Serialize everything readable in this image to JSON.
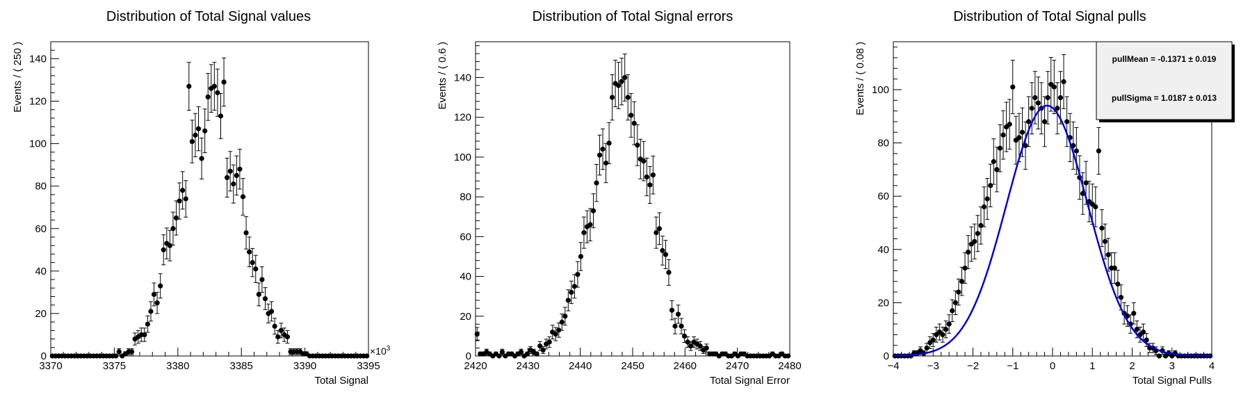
{
  "chart_data": [
    {
      "type": "scatter",
      "title": "Distribution of Total Signal values",
      "xlabel": "Total Signal",
      "ylabel": "Events / ( 250 )",
      "xlim": [
        3370,
        3395
      ],
      "ylim": [
        0,
        148
      ],
      "x_ticks": [
        "3370",
        "3375",
        "3380",
        "3385",
        "3390",
        "3395"
      ],
      "x_tick_values": [
        3370,
        3375,
        3380,
        3385,
        3390,
        3395
      ],
      "y_ticks": [
        "0",
        "20",
        "40",
        "60",
        "80",
        "100",
        "120",
        "140"
      ],
      "y_tick_values": [
        0,
        20,
        40,
        60,
        80,
        100,
        120,
        140
      ],
      "x_exponent_prefix": "×10",
      "x_exponent_power": "3",
      "x": [
        3370.125,
        3370.375,
        3370.625,
        3370.875,
        3371.125,
        3371.375,
        3371.625,
        3371.875,
        3372.125,
        3372.375,
        3372.625,
        3372.875,
        3373.125,
        3373.375,
        3373.625,
        3373.875,
        3374.125,
        3374.375,
        3374.625,
        3374.875,
        3375.125,
        3375.375,
        3375.625,
        3375.875,
        3376.125,
        3376.375,
        3376.625,
        3376.875,
        3377.125,
        3377.375,
        3377.625,
        3377.875,
        3378.125,
        3378.375,
        3378.625,
        3378.875,
        3379.125,
        3379.375,
        3379.625,
        3379.875,
        3380.125,
        3380.375,
        3380.625,
        3380.875,
        3381.125,
        3381.375,
        3381.625,
        3381.875,
        3382.125,
        3382.375,
        3382.625,
        3382.875,
        3383.125,
        3383.375,
        3383.625,
        3383.875,
        3384.125,
        3384.375,
        3384.625,
        3384.875,
        3385.125,
        3385.375,
        3385.625,
        3385.875,
        3386.125,
        3386.375,
        3386.625,
        3386.875,
        3387.125,
        3387.375,
        3387.625,
        3387.875,
        3388.125,
        3388.375,
        3388.625,
        3388.875,
        3389.125,
        3389.375,
        3389.625,
        3389.875,
        3390.125,
        3390.375,
        3390.625,
        3390.875,
        3391.125,
        3391.375,
        3391.625,
        3391.875,
        3392.125,
        3392.375,
        3392.625,
        3392.875,
        3393.125,
        3393.375,
        3393.625,
        3393.875,
        3394.125,
        3394.375,
        3394.625,
        3394.875
      ],
      "y": [
        0,
        0,
        0,
        0,
        0,
        0,
        0,
        0,
        0,
        0,
        0,
        0,
        0,
        0,
        0,
        0,
        0,
        0,
        0,
        0,
        0,
        2,
        0,
        1,
        2,
        2,
        8,
        9,
        10,
        10,
        15,
        21,
        29,
        25,
        33,
        50,
        53,
        52,
        60,
        65,
        73,
        78,
        74,
        127,
        101,
        104,
        107,
        93,
        106,
        122,
        126,
        127,
        124,
        113,
        129,
        84,
        87,
        81,
        85,
        88,
        75,
        58,
        49,
        44,
        41,
        29,
        36,
        27,
        20,
        21,
        14,
        9,
        12,
        10,
        9,
        2,
        2,
        2,
        2,
        1,
        1,
        0,
        0,
        0,
        0,
        0,
        0,
        0,
        0,
        0,
        0,
        0,
        0,
        0,
        0,
        0,
        0,
        0,
        0,
        0
      ]
    },
    {
      "type": "scatter",
      "title": "Distribution of Total Signal errors",
      "xlabel": "Total Signal Error",
      "ylabel": "Events / ( 0.6 )",
      "xlim": [
        2420,
        2480
      ],
      "ylim": [
        0,
        158
      ],
      "x_ticks": [
        "2420",
        "2430",
        "2440",
        "2450",
        "2460",
        "2470",
        "2480"
      ],
      "x_tick_values": [
        2420,
        2430,
        2440,
        2450,
        2460,
        2470,
        2480
      ],
      "y_ticks": [
        "0",
        "20",
        "40",
        "60",
        "80",
        "100",
        "120",
        "140"
      ],
      "y_tick_values": [
        0,
        20,
        40,
        60,
        80,
        100,
        120,
        140
      ],
      "x": [
        2420.3,
        2420.9,
        2421.5,
        2422.1,
        2422.7,
        2423.3,
        2423.9,
        2424.5,
        2425.1,
        2425.7,
        2426.3,
        2426.9,
        2427.5,
        2428.1,
        2428.7,
        2429.3,
        2429.9,
        2430.5,
        2431.1,
        2431.7,
        2432.3,
        2432.9,
        2433.5,
        2434.1,
        2434.7,
        2435.3,
        2435.9,
        2436.5,
        2437.1,
        2437.7,
        2438.3,
        2438.9,
        2439.5,
        2440.1,
        2440.7,
        2441.3,
        2441.9,
        2442.5,
        2443.1,
        2443.7,
        2444.3,
        2444.9,
        2445.5,
        2446.1,
        2446.7,
        2447.3,
        2447.9,
        2448.5,
        2449.1,
        2449.7,
        2450.3,
        2450.9,
        2451.5,
        2452.1,
        2452.7,
        2453.3,
        2453.9,
        2454.5,
        2455.1,
        2455.7,
        2456.3,
        2456.9,
        2457.5,
        2458.1,
        2458.7,
        2459.3,
        2459.9,
        2460.5,
        2461.1,
        2461.7,
        2462.3,
        2462.9,
        2463.5,
        2464.1,
        2464.7,
        2465.3,
        2465.9,
        2466.5,
        2467.1,
        2467.7,
        2468.3,
        2468.9,
        2469.5,
        2470.1,
        2470.7,
        2471.3,
        2471.9,
        2472.5,
        2473.1,
        2473.7,
        2474.3,
        2474.9,
        2475.5,
        2476.1,
        2476.7,
        2477.3,
        2477.9,
        2478.5,
        2479.1,
        2479.7
      ],
      "y": [
        11,
        1,
        1,
        2,
        1,
        0,
        1,
        0,
        2,
        0,
        1,
        1,
        0,
        1,
        2,
        0,
        1,
        3,
        2,
        1,
        5,
        3,
        6,
        7,
        12,
        11,
        13,
        17,
        20,
        28,
        32,
        35,
        41,
        50,
        62,
        65,
        66,
        73,
        87,
        101,
        104,
        97,
        107,
        130,
        137,
        136,
        138,
        140,
        130,
        121,
        117,
        106,
        99,
        98,
        90,
        86,
        91,
        62,
        64,
        53,
        51,
        42,
        23,
        15,
        21,
        15,
        10,
        7,
        5,
        7,
        6,
        5,
        3,
        4,
        1,
        1,
        1,
        0,
        1,
        1,
        0,
        0,
        1,
        0,
        1,
        1,
        0,
        0,
        0,
        0,
        0,
        0,
        0,
        0,
        1,
        0,
        0,
        1,
        0,
        0
      ]
    },
    {
      "type": "scatter",
      "title": "Distribution of Total Signal pulls",
      "xlabel": "Total Signal Pulls",
      "ylabel": "Events / ( 0.08 )",
      "xlim": [
        -4,
        4
      ],
      "ylim": [
        0,
        118
      ],
      "x_ticks": [
        "−4",
        "−3",
        "−2",
        "−1",
        "0",
        "1",
        "2",
        "3",
        "4"
      ],
      "x_tick_values": [
        -4,
        -3,
        -2,
        -1,
        0,
        1,
        2,
        3,
        4
      ],
      "y_ticks": [
        "0",
        "20",
        "40",
        "60",
        "80",
        "100"
      ],
      "y_tick_values": [
        0,
        20,
        40,
        60,
        80,
        100
      ],
      "x": [
        -3.96,
        -3.88,
        -3.8,
        -3.72,
        -3.64,
        -3.56,
        -3.48,
        -3.4,
        -3.32,
        -3.24,
        -3.16,
        -3.08,
        -3.0,
        -2.92,
        -2.84,
        -2.76,
        -2.68,
        -2.6,
        -2.52,
        -2.44,
        -2.36,
        -2.28,
        -2.2,
        -2.12,
        -2.04,
        -1.96,
        -1.88,
        -1.8,
        -1.72,
        -1.64,
        -1.56,
        -1.48,
        -1.4,
        -1.32,
        -1.24,
        -1.16,
        -1.08,
        -1.0,
        -0.92,
        -0.84,
        -0.76,
        -0.68,
        -0.6,
        -0.52,
        -0.44,
        -0.36,
        -0.28,
        -0.2,
        -0.12,
        -0.04,
        0.04,
        0.12,
        0.2,
        0.28,
        0.36,
        0.44,
        0.52,
        0.6,
        0.68,
        0.76,
        0.84,
        0.92,
        1.0,
        1.08,
        1.16,
        1.24,
        1.32,
        1.4,
        1.48,
        1.56,
        1.64,
        1.72,
        1.8,
        1.88,
        1.96,
        2.04,
        2.12,
        2.2,
        2.28,
        2.36,
        2.44,
        2.52,
        2.6,
        2.68,
        2.76,
        2.84,
        2.92,
        3.0,
        3.08,
        3.16,
        3.24,
        3.32,
        3.4,
        3.48,
        3.56,
        3.64,
        3.72,
        3.8,
        3.88,
        3.96
      ],
      "y": [
        0,
        0,
        0,
        0,
        0,
        0,
        1,
        1,
        2,
        1,
        3,
        5,
        6,
        8,
        9,
        8,
        10,
        12,
        17,
        20,
        24,
        28,
        33,
        39,
        42,
        43,
        46,
        49,
        56,
        59,
        64,
        73,
        70,
        78,
        83,
        86,
        87,
        101,
        81,
        82,
        84,
        79,
        88,
        93,
        97,
        95,
        93,
        88,
        97,
        102,
        101,
        93,
        97,
        103,
        88,
        82,
        79,
        77,
        67,
        61,
        65,
        58,
        57,
        56,
        77,
        48,
        43,
        38,
        33,
        33,
        27,
        22,
        16,
        15,
        12,
        16,
        10,
        8,
        9,
        6,
        3,
        3,
        2,
        0,
        2,
        0,
        1,
        0,
        1,
        0,
        0,
        0,
        0,
        0,
        0,
        0,
        0,
        0,
        0,
        0
      ],
      "fit": {
        "type": "gaussian",
        "mean": -0.1371,
        "sigma": 1.0187,
        "peak": 94,
        "color": "#0000dd"
      },
      "stats": {
        "mean_label": "pullMean = -0.1371 ± 0.019",
        "sigma_label": "pullSigma = 1.0187 ± 0.013"
      }
    }
  ]
}
